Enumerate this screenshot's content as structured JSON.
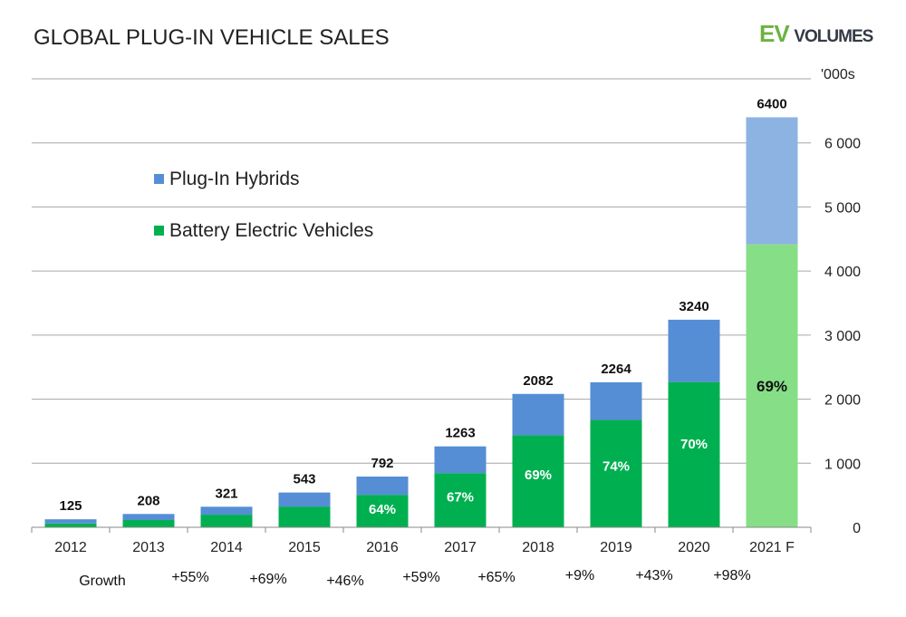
{
  "chart_data": {
    "type": "bar",
    "stacked": true,
    "title": "GLOBAL PLUG-IN VEHICLE SALES",
    "unit_label": "'000s",
    "categories": [
      "2012",
      "2013",
      "2014",
      "2015",
      "2016",
      "2017",
      "2018",
      "2019",
      "2020",
      "2021 F"
    ],
    "totals": [
      125,
      208,
      321,
      543,
      792,
      1263,
      2082,
      2264,
      3240,
      6400
    ],
    "series": [
      {
        "name": "Battery Electric Vehicles",
        "color": "#00b050",
        "forecast_color": "#86df86",
        "values": [
          60,
          113,
          197,
          324,
          507,
          846,
          1437,
          1675,
          2268,
          4416
        ]
      },
      {
        "name": "Plug-In Hybrids",
        "color": "#558ed5",
        "forecast_color": "#8db3e2",
        "values": [
          65,
          95,
          124,
          219,
          285,
          417,
          645,
          589,
          972,
          1984
        ]
      }
    ],
    "bev_share_labels": [
      "",
      "",
      "",
      "",
      "64%",
      "67%",
      "69%",
      "74%",
      "70%",
      "69%"
    ],
    "growth_label": "Growth",
    "growth": [
      "+55%",
      "+69%",
      "+46%",
      "+59%",
      "+65%",
      "+9%",
      "+43%",
      "+98%"
    ],
    "yticks": [
      "0",
      "1 000",
      "2 000",
      "3 000",
      "4 000",
      "5 000",
      "6 000"
    ],
    "ylim": [
      0,
      7000
    ],
    "grid": true,
    "yaxis_position": "right",
    "legend_placement": "top-left"
  },
  "logo": {
    "ev": "EV",
    "volumes": "VOLUMES"
  }
}
